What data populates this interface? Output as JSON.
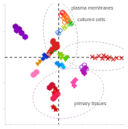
{
  "chart_data": {
    "type": "scatter",
    "xlim": [
      -4.5,
      5.5
    ],
    "ylim": [
      -5.2,
      4.2
    ],
    "xticks": [
      -4,
      -2,
      0,
      2,
      4
    ],
    "yticks": [
      -4,
      -2,
      0,
      2,
      4
    ],
    "tick_labels": false,
    "grid": false,
    "vlines": [
      0
    ],
    "hlines": [
      0
    ],
    "annotations": [
      {
        "x": 1.05,
        "y": 3.85,
        "text": "plasma membranes",
        "color": "#555555"
      },
      {
        "x": 1.55,
        "y": 2.9,
        "text": "cultured cells",
        "color": "#555555"
      },
      {
        "x": 1.3,
        "y": -3.6,
        "text": "primary tissues",
        "color": "#555555"
      }
    ],
    "ellipses": [
      {
        "cx": 0.15,
        "cy": 1.7,
        "w": 2.8,
        "h": 5.2,
        "angle": 8,
        "color": "#aaaaaa",
        "line_style": "dashed"
      },
      {
        "cx": 3.2,
        "cy": 0.1,
        "w": 5.8,
        "h": 2.2,
        "angle": -5,
        "color": "#aaaaaa",
        "line_style": "dashed"
      },
      {
        "cx": 0.8,
        "cy": -2.8,
        "w": 6.0,
        "h": 3.8,
        "angle": 12,
        "color": "#cc99cc",
        "line_style": "dashed"
      }
    ],
    "series": [
      {
        "x": [
          -3.5,
          -3.1,
          -2.8
        ],
        "values": [
          2.1,
          1.9,
          1.6
        ],
        "marker": "hexagon",
        "color": "#8800bb"
      },
      {
        "x": [
          -3.6,
          -3.3
        ],
        "values": [
          2.4,
          2.2
        ],
        "marker": "hexagon",
        "color": "#7700aa"
      },
      {
        "x": [
          0.55,
          0.7,
          0.8,
          0.62,
          0.72,
          0.6,
          0.45,
          0.5
        ],
        "values": [
          3.3,
          3.1,
          2.9,
          3.15,
          2.85,
          2.95,
          3.05,
          2.75
        ],
        "marker": "circle-open",
        "color": "#ff6600"
      },
      {
        "x": [
          0.3,
          0.45,
          0.2,
          0.35
        ],
        "values": [
          3.5,
          3.35,
          3.25,
          3.45
        ],
        "marker": "circle-open",
        "color": "#ff0000"
      },
      {
        "x": [
          0.85,
          1.0,
          1.1,
          0.95
        ],
        "values": [
          2.7,
          2.55,
          2.65,
          2.8
        ],
        "marker": "triangle-up-open",
        "color": "#00aa00"
      },
      {
        "x": [
          0.65,
          0.5,
          0.4
        ],
        "values": [
          2.4,
          2.25,
          2.35
        ],
        "marker": "triangle-down-open",
        "color": "#aacc00"
      },
      {
        "x": [
          0.15,
          -0.1,
          0.0
        ],
        "values": [
          2.1,
          1.95,
          1.85
        ],
        "marker": "diamond-open",
        "color": "#0055cc"
      },
      {
        "x": [
          -0.5,
          -0.3,
          -0.15,
          -0.4,
          -0.25,
          -0.35,
          -0.2,
          -0.45,
          -0.1,
          -0.55
        ],
        "values": [
          1.2,
          0.9,
          1.05,
          1.1,
          0.8,
          0.95,
          0.75,
          1.3,
          0.85,
          0.65
        ],
        "marker": "circle",
        "color": "#dd2222"
      },
      {
        "x": [
          -0.7,
          -0.85,
          -0.6,
          -0.75
        ],
        "values": [
          0.45,
          0.25,
          0.55,
          0.35
        ],
        "marker": "circle-open",
        "color": "#cc0000"
      },
      {
        "x": [
          -0.45,
          -0.25,
          -0.6,
          -0.35
        ],
        "values": [
          0.55,
          0.7,
          0.4,
          0.6
        ],
        "marker": "triangle-up",
        "color": "#00bb00"
      },
      {
        "x": [
          0.15,
          0.3,
          0.05,
          0.2
        ],
        "values": [
          0.3,
          0.15,
          0.2,
          -0.05
        ],
        "marker": "triangle-down",
        "color": "#88cc00"
      },
      {
        "x": [
          0.55,
          0.7,
          0.65
        ],
        "values": [
          -0.15,
          0.05,
          -0.05
        ],
        "marker": "triangle-down",
        "color": "#55cc00"
      },
      {
        "x": [
          -1.0,
          -1.2,
          -1.3
        ],
        "values": [
          0.05,
          0.2,
          -0.1
        ],
        "marker": "diamond",
        "color": "#0033cc"
      },
      {
        "x": [
          -0.15,
          0.05
        ],
        "values": [
          -0.45,
          -0.6
        ],
        "marker": "diamond",
        "color": "#0088ee"
      },
      {
        "x": [
          0.4,
          0.25
        ],
        "values": [
          -0.75,
          -0.55
        ],
        "marker": "diamond",
        "color": "#00aaff"
      },
      {
        "x": [
          -1.55,
          -1.75
        ],
        "values": [
          -0.3,
          -0.5
        ],
        "marker": "triangle-down",
        "color": "#dd8800"
      },
      {
        "x": [
          2.8,
          3.05,
          3.35,
          3.65,
          3.95,
          4.25,
          4.55,
          4.85,
          3.75,
          4.1
        ],
        "values": [
          0.05,
          -0.05,
          0.1,
          -0.1,
          0.05,
          0.0,
          -0.15,
          -0.05,
          0.15,
          -0.1
        ],
        "marker": "x",
        "color": "#cc0000"
      },
      {
        "x": [
          5.25
        ],
        "values": [
          -0.05
        ],
        "marker": "x",
        "color": "#cc0000"
      },
      {
        "x": [
          1.95,
          2.15,
          2.3,
          2.05,
          2.2,
          2.1
        ],
        "values": [
          -0.75,
          -0.6,
          -0.9,
          -1.05,
          -0.85,
          -1.15
        ],
        "marker": "circle-open",
        "color": "#9922cc"
      },
      {
        "x": [
          2.0,
          2.25,
          2.15
        ],
        "values": [
          -1.0,
          -0.8,
          -1.25
        ],
        "marker": "plus",
        "color": "#cc0099"
      },
      {
        "x": [
          1.4,
          1.2,
          1.3
        ],
        "values": [
          -1.75,
          -1.95,
          -2.2
        ],
        "marker": "plus",
        "color": "#ff44aa"
      },
      {
        "x": [
          -2.1,
          -1.85
        ],
        "values": [
          -1.35,
          -1.15
        ],
        "marker": "hexagon",
        "color": "#ff77bb"
      },
      {
        "x": [
          -0.75,
          -0.55
        ],
        "values": [
          -2.35,
          -2.15
        ],
        "marker": "hexagon",
        "color": "#cc1133"
      },
      {
        "x": [
          -0.3,
          -0.1,
          -0.45
        ],
        "values": [
          -3.05,
          -2.85,
          -3.2
        ],
        "marker": "hexagon",
        "color": "#ee2255"
      },
      {
        "x": [
          -0.5,
          -0.3,
          -0.15,
          -0.4
        ],
        "values": [
          -2.15,
          -2.4,
          -2.6,
          -2.75
        ],
        "marker": "star",
        "color": "#cc0000"
      },
      {
        "x": [
          -0.25,
          -0.45
        ],
        "values": [
          -4.05,
          -3.85
        ],
        "marker": "star",
        "color": "#cc0000"
      }
    ]
  }
}
